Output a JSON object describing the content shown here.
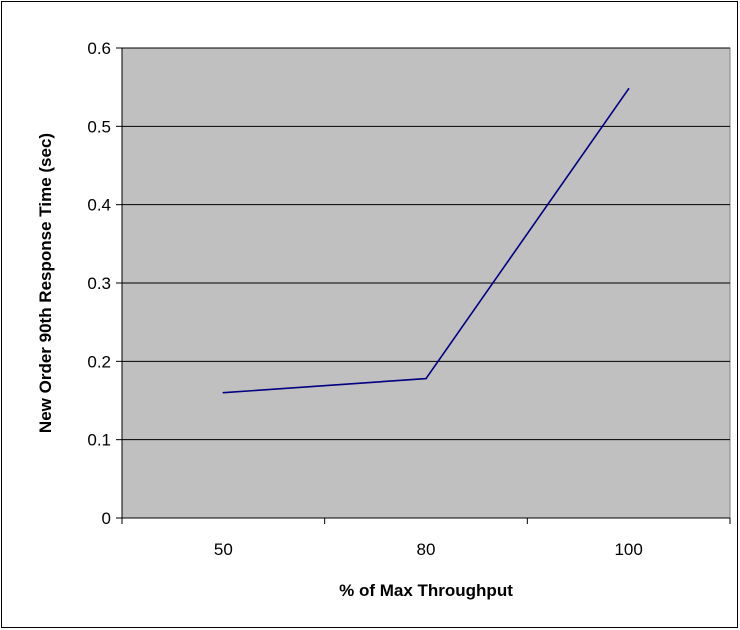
{
  "chart_data": {
    "type": "line",
    "title": "",
    "xlabel": "% of Max Throughput",
    "ylabel": "New Order 90th Response Time (sec)",
    "categories": [
      "50",
      "80",
      "100"
    ],
    "series": [
      {
        "values": [
          0.16,
          0.178,
          0.548
        ]
      }
    ],
    "ylim": [
      0,
      0.6
    ],
    "yticks": [
      "0",
      "0.1",
      "0.2",
      "0.3",
      "0.4",
      "0.5",
      "0.6"
    ],
    "grid": "horizontal",
    "legend": "none",
    "colors": {
      "plot_background": "#c0c0c0",
      "line": "#000080",
      "gridline": "#000000"
    }
  }
}
